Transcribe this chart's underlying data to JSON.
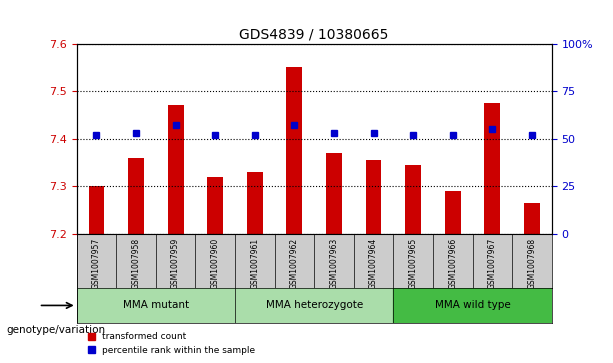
{
  "title": "GDS4839 / 10380665",
  "samples": [
    "GSM1007957",
    "GSM1007958",
    "GSM1007959",
    "GSM1007960",
    "GSM1007961",
    "GSM1007962",
    "GSM1007963",
    "GSM1007964",
    "GSM1007965",
    "GSM1007966",
    "GSM1007967",
    "GSM1007968"
  ],
  "transformed_count": [
    7.3,
    7.36,
    7.47,
    7.32,
    7.33,
    7.55,
    7.37,
    7.355,
    7.345,
    7.29,
    7.475,
    7.265
  ],
  "percentile_rank": [
    52,
    53,
    57,
    52,
    52,
    57,
    53,
    53,
    52,
    52,
    55,
    52
  ],
  "y_min": 7.2,
  "y_max": 7.6,
  "y_ticks": [
    7.2,
    7.3,
    7.4,
    7.5,
    7.6
  ],
  "right_y_ticks": [
    0,
    25,
    50,
    75,
    100
  ],
  "right_y_labels": [
    "0",
    "25",
    "50",
    "75",
    "100%"
  ],
  "bar_color": "#cc0000",
  "dot_color": "#0000cc",
  "groups": [
    {
      "label": "MMA mutant",
      "start": 0,
      "end": 4,
      "color": "#aaddaa"
    },
    {
      "label": "MMA heterozygote",
      "start": 4,
      "end": 8,
      "color": "#aaddaa"
    },
    {
      "label": "MMA wild type",
      "start": 8,
      "end": 12,
      "color": "#44bb44"
    }
  ],
  "group_row_color": "#cccccc",
  "genotype_label": "genotype/variation",
  "legend_items": [
    {
      "label": "transformed count",
      "color": "#cc0000"
    },
    {
      "label": "percentile rank within the sample",
      "color": "#0000cc"
    }
  ],
  "background_color": "#ffffff"
}
